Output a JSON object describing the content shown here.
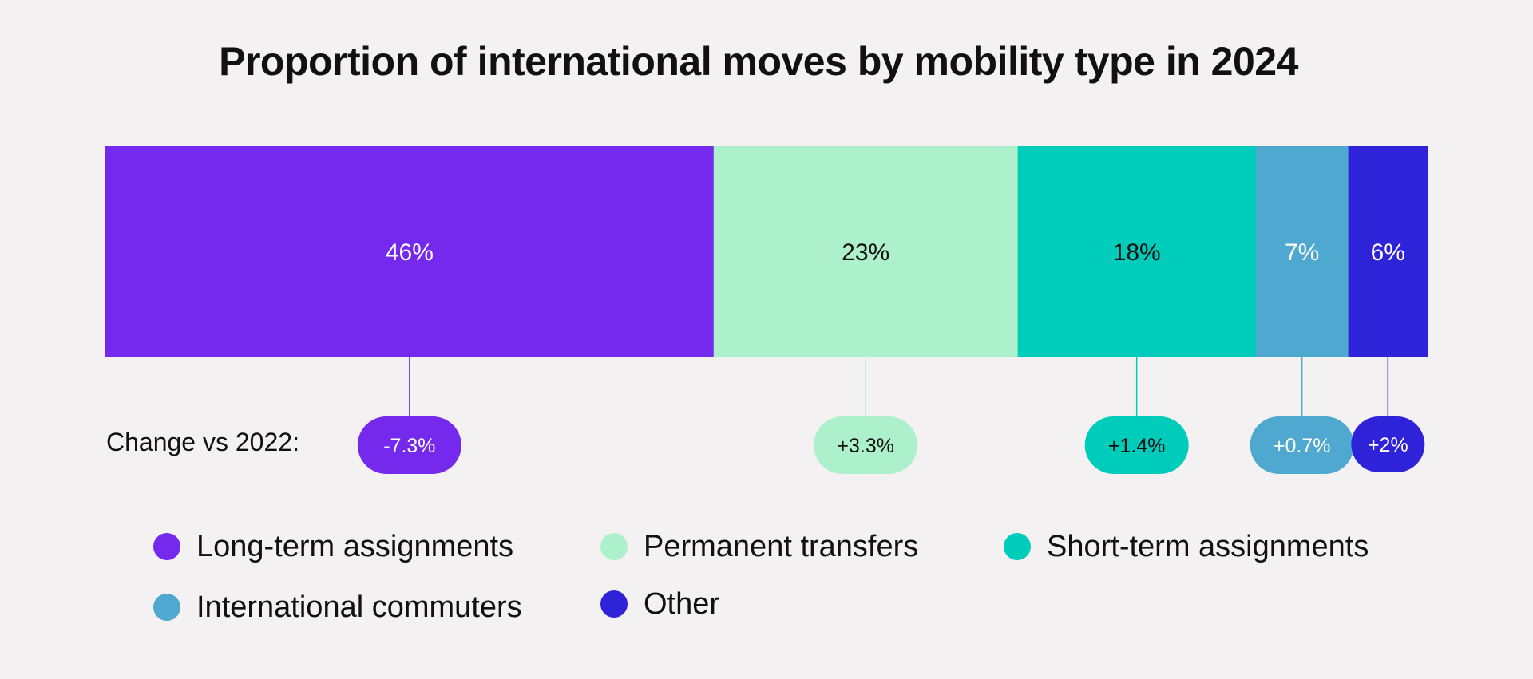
{
  "chart_data": {
    "type": "bar",
    "orientation": "horizontal-stacked-100",
    "title": "Proportion of international moves by mobility type in 2024",
    "change_label": "Change vs 2022:",
    "series": [
      {
        "name": "Long-term assignments",
        "value": 46,
        "value_label": "46%",
        "change": -7.3,
        "change_label": "-7.3%",
        "color": "#7429ec",
        "text_color": "#ffffff",
        "change_text_color": "#ffffff"
      },
      {
        "name": "Permanent transfers",
        "value": 23,
        "value_label": "23%",
        "change": 3.3,
        "change_label": "+3.3%",
        "color": "#adf0cc",
        "text_color": "#111111",
        "change_text_color": "#111111"
      },
      {
        "name": "Short-term assignments",
        "value": 18,
        "value_label": "18%",
        "change": 1.4,
        "change_label": "+1.4%",
        "color": "#00ccbb",
        "text_color": "#111111",
        "change_text_color": "#111111"
      },
      {
        "name": "International commuters",
        "value": 7,
        "value_label": "7%",
        "change": 0.7,
        "change_label": "+0.7%",
        "color": "#4fa8cf",
        "text_color": "#ffffff",
        "change_text_color": "#ffffff"
      },
      {
        "name": "Other",
        "value": 6,
        "value_label": "6%",
        "change": 2,
        "change_label": "+2%",
        "color": "#2f23d9",
        "text_color": "#ffffff",
        "change_text_color": "#ffffff"
      }
    ],
    "legend_position": "bottom"
  }
}
